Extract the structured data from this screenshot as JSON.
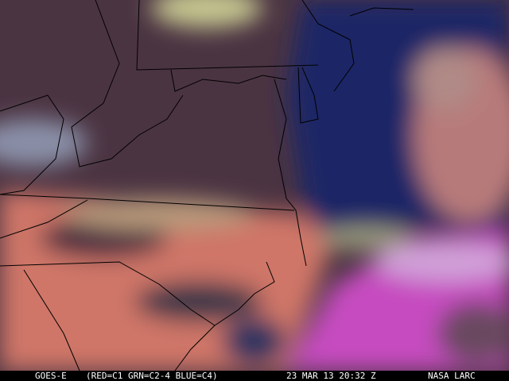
{
  "caption": {
    "satellite": "GOES-E",
    "channels": "(RED=C1 GRN=C2-4 BLUE=C4)",
    "datetime": "23 MAR 13 20:32 Z",
    "source": "NASA LARC"
  },
  "colors": {
    "ocean": "#1c2468",
    "land_clear": "#4a3342",
    "low_cloud": "#d67a6a",
    "high_cloud": "#d050c8",
    "borders": "#000000"
  }
}
